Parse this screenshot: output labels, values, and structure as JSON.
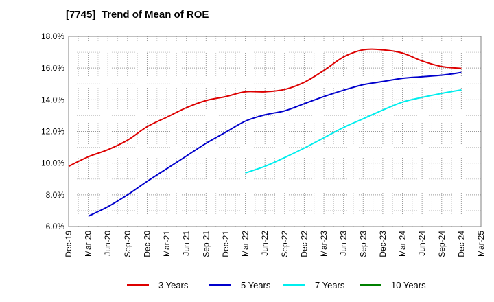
{
  "chart_data": {
    "type": "line",
    "title": "[7745]  Trend of Mean of ROE",
    "xlabel": "",
    "ylabel": "",
    "x": [
      "Dec-19",
      "Mar-20",
      "Jun-20",
      "Sep-20",
      "Dec-20",
      "Mar-21",
      "Jun-21",
      "Sep-21",
      "Dec-21",
      "Mar-22",
      "Jun-22",
      "Sep-22",
      "Dec-22",
      "Mar-23",
      "Jun-23",
      "Sep-23",
      "Dec-23",
      "Mar-24",
      "Jun-24",
      "Sep-24",
      "Dec-24",
      "Mar-25"
    ],
    "ylim": [
      6.0,
      18.0
    ],
    "yticks": [
      "6.0%",
      "8.0%",
      "10.0%",
      "12.0%",
      "14.0%",
      "16.0%",
      "18.0%"
    ],
    "grid": true,
    "legend_position": "bottom",
    "series": [
      {
        "name": "3 Years",
        "color": "#dd0000",
        "values": [
          9.8,
          10.4,
          10.85,
          11.45,
          12.3,
          12.9,
          13.5,
          13.95,
          14.2,
          14.5,
          14.5,
          14.65,
          15.1,
          15.85,
          16.7,
          17.15,
          17.15,
          16.95,
          16.45,
          16.1,
          15.98,
          null
        ]
      },
      {
        "name": "5 Years",
        "color": "#0000cc",
        "values": [
          null,
          6.65,
          7.25,
          8.0,
          8.85,
          9.65,
          10.45,
          11.25,
          11.95,
          12.65,
          13.05,
          13.3,
          13.75,
          14.2,
          14.6,
          14.95,
          15.15,
          15.35,
          15.45,
          15.55,
          15.72,
          null
        ]
      },
      {
        "name": "7 Years",
        "color": "#00eeee",
        "values": [
          null,
          null,
          null,
          null,
          null,
          null,
          null,
          null,
          null,
          9.38,
          9.8,
          10.35,
          10.95,
          11.6,
          12.25,
          12.8,
          13.35,
          13.85,
          14.15,
          14.4,
          14.62,
          null
        ]
      },
      {
        "name": "10 Years",
        "color": "#008000",
        "values": [
          null,
          null,
          null,
          null,
          null,
          null,
          null,
          null,
          null,
          null,
          null,
          null,
          null,
          null,
          null,
          null,
          null,
          null,
          null,
          null,
          null,
          null
        ]
      }
    ]
  }
}
